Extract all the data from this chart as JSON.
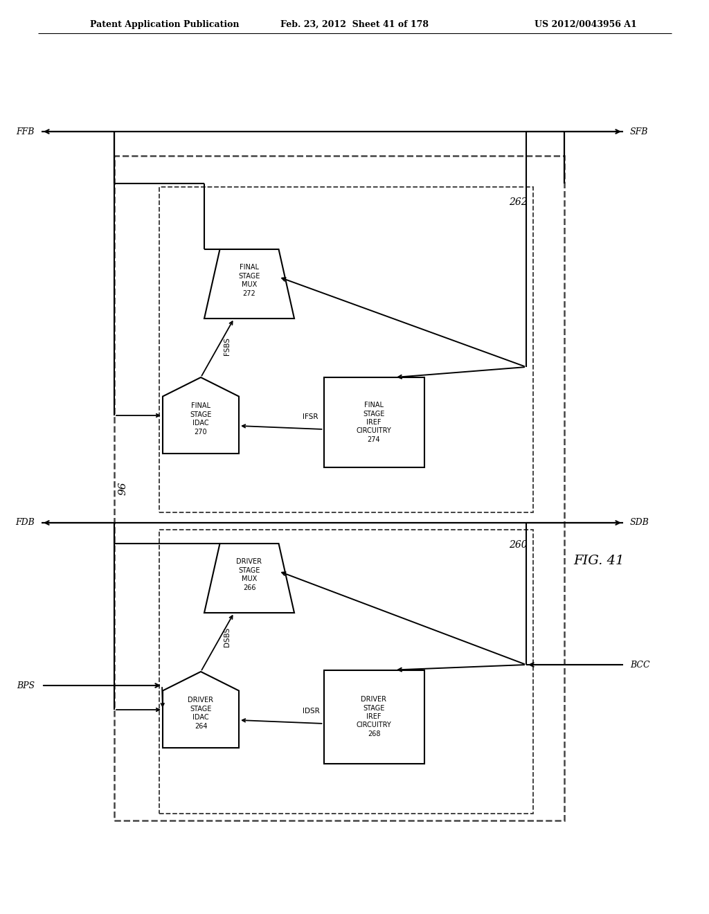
{
  "title_left": "Patent Application Publication",
  "title_mid": "Feb. 23, 2012  Sheet 41 of 178",
  "title_right": "US 2012/0043956 A1",
  "fig_label": "FIG. 41",
  "background_color": "#ffffff"
}
